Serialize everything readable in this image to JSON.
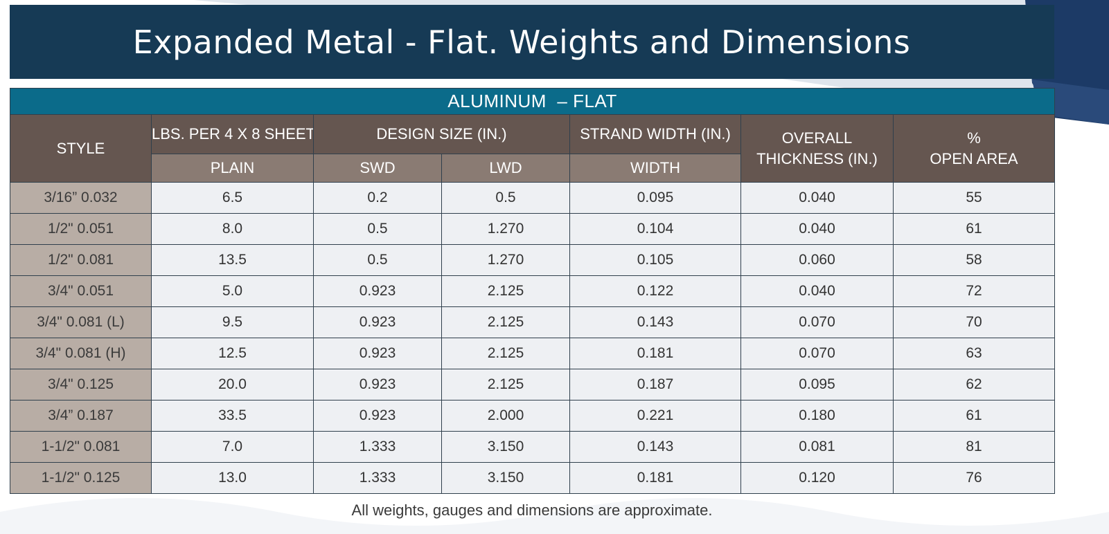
{
  "title": "Expanded Metal - Flat. Weights and Dimensions",
  "section_label": "ALUMINUM  – FLAT",
  "headers": {
    "style": "STYLE",
    "lbs": "LBS. PER 4 X 8 SHEET",
    "design": "DESIGN SIZE (IN.)",
    "strand": "STRAND WIDTH (IN.)",
    "thickness_line1": "OVERALL",
    "thickness_line2": "THICKNESS (IN.)",
    "open_line1": "%",
    "open_line2": "OPEN AREA",
    "plain": "PLAIN",
    "swd": "SWD",
    "lwd": "LWD",
    "width": "WIDTH"
  },
  "rows": [
    [
      "3/16” 0.032",
      "6.5",
      "0.2",
      "0.5",
      "0.095",
      "0.040",
      "55"
    ],
    [
      "1/2\" 0.051",
      "8.0",
      "0.5",
      "1.270",
      "0.104",
      "0.040",
      "61"
    ],
    [
      "1/2\" 0.081",
      "13.5",
      "0.5",
      "1.270",
      "0.105",
      "0.060",
      "58"
    ],
    [
      "3/4\" 0.051",
      "5.0",
      "0.923",
      "2.125",
      "0.122",
      "0.040",
      "72"
    ],
    [
      "3/4\" 0.081 (L)",
      "9.5",
      "0.923",
      "2.125",
      "0.143",
      "0.070",
      "70"
    ],
    [
      "3/4\" 0.081 (H)",
      "12.5",
      "0.923",
      "2.125",
      "0.181",
      "0.070",
      "63"
    ],
    [
      "3/4\" 0.125",
      "20.0",
      "0.923",
      "2.125",
      "0.187",
      "0.095",
      "62"
    ],
    [
      "3/4” 0.187",
      "33.5",
      "0.923",
      "2.000",
      "0.221",
      "0.180",
      "61"
    ],
    [
      "1-1/2\" 0.081",
      "7.0",
      "1.333",
      "3.150",
      "0.143",
      "0.081",
      "81"
    ],
    [
      "1-1/2\" 0.125",
      "13.0",
      "1.333",
      "3.150",
      "0.181",
      "0.120",
      "76"
    ]
  ],
  "note": "All weights, gauges and dimensions are approximate.",
  "colors": {
    "title_bar": "#163a55",
    "section_band": "#0b6b8a",
    "header_dark": "#655650",
    "header_light": "#8a7b73",
    "style_column": "#b8ada5",
    "cell_bg": "#eef0f3"
  }
}
